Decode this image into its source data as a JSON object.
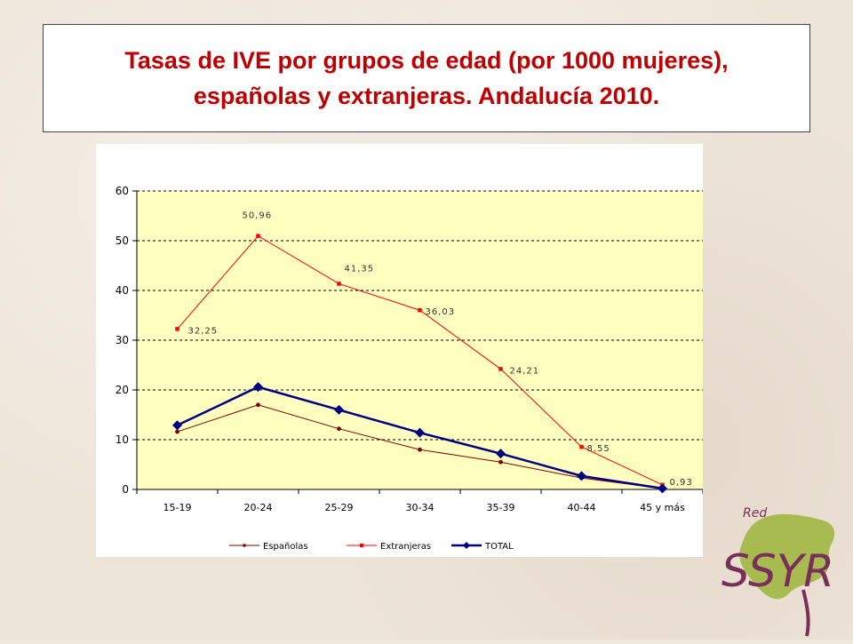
{
  "slide": {
    "title_line1": "Tasas de IVE por grupos de edad  (por 1000 mujeres),",
    "title_line2": "españolas y extranjeras. Andalucía 2010.",
    "colors": {
      "title": "#c00000",
      "plot_bg": "#ffffc0"
    }
  },
  "chart_data": {
    "type": "line",
    "categories": [
      "15-19",
      "20-24",
      "25-29",
      "30-34",
      "35-39",
      "40-44",
      "45 y más"
    ],
    "ylim": [
      0,
      60
    ],
    "yticks": [
      0,
      10,
      20,
      30,
      40,
      50,
      60
    ],
    "grid": true,
    "legend_position": "bottom",
    "series": [
      {
        "name": "Españolas",
        "color": "#800000",
        "marker": "circle",
        "values": [
          11.6,
          17.0,
          12.2,
          8.0,
          5.5,
          2.3,
          0.2
        ],
        "labels": []
      },
      {
        "name": "Extranjeras",
        "color": "#ff0000",
        "marker": "square",
        "values": [
          32.25,
          50.96,
          41.35,
          36.03,
          24.21,
          8.55,
          0.93
        ],
        "labels": [
          "32,25",
          "50,96",
          "41,35",
          "36,03",
          "24,21",
          "8,55",
          "0,93"
        ]
      },
      {
        "name": "TOTAL",
        "color": "#000080",
        "marker": "diamond",
        "values": [
          12.9,
          20.6,
          16.0,
          11.4,
          7.2,
          2.7,
          0.2
        ],
        "labels": []
      }
    ]
  },
  "logo": {
    "text_red": "Red",
    "text_ssyr": "SSYR"
  }
}
